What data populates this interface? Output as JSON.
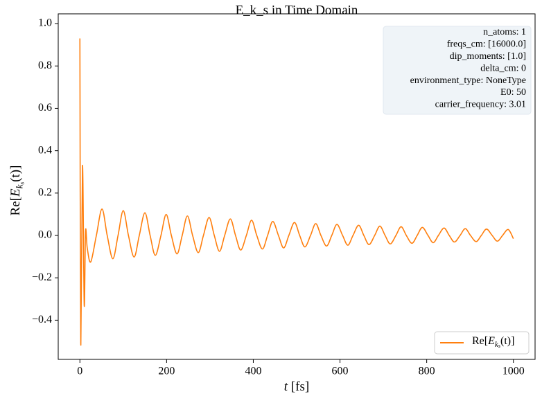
{
  "chart_data": {
    "type": "line",
    "title": "E_k_s in Time Domain",
    "xlabel": [
      "t",
      " [fs]"
    ],
    "ylabel": [
      "Re[",
      "E",
      "k",
      "s",
      "(t)]"
    ],
    "x": [
      0,
      2,
      6,
      10,
      13,
      17,
      25,
      38,
      51,
      63,
      76,
      88,
      100,
      112,
      125,
      137,
      150,
      162,
      174,
      187,
      199,
      211,
      224,
      236,
      248,
      260,
      273,
      285,
      298,
      310,
      322,
      334,
      347,
      359,
      371,
      384,
      396,
      408,
      421,
      433,
      445,
      458,
      470,
      482,
      495,
      507,
      519,
      532,
      544,
      556,
      569,
      581,
      593,
      606,
      618,
      630,
      643,
      655,
      667,
      680,
      692,
      704,
      716,
      729,
      741,
      753,
      766,
      778,
      790,
      803,
      815,
      827,
      840,
      852,
      864,
      877,
      889,
      901,
      914,
      926,
      938,
      951,
      963,
      975,
      988,
      1000
    ],
    "series": [
      {
        "name": [
          "Re[",
          "E",
          "k",
          "s",
          "(t)]"
        ],
        "color": "#ff7f0e",
        "values": [
          0.93,
          -0.51,
          0.33,
          -0.33,
          0.02,
          -0.06,
          -0.125,
          0,
          0.125,
          0,
          -0.11,
          0,
          0.117,
          0,
          -0.102,
          0,
          0.107,
          0,
          -0.094,
          0,
          0.099,
          0,
          -0.087,
          0,
          0.092,
          0,
          -0.081,
          0,
          0.085,
          0,
          -0.075,
          0,
          0.078,
          0,
          -0.069,
          0,
          0.072,
          0,
          -0.064,
          0,
          0.066,
          0,
          -0.059,
          0,
          0.061,
          0,
          -0.054,
          0,
          0.056,
          0,
          -0.05,
          0,
          0.052,
          0,
          -0.046,
          0,
          0.048,
          0,
          -0.043,
          0,
          0.044,
          0,
          -0.04,
          0,
          0.041,
          0,
          -0.037,
          0,
          0.038,
          0,
          -0.034,
          0,
          0.035,
          0,
          -0.031,
          0,
          0.032,
          0,
          -0.029,
          0,
          0.03,
          0,
          -0.027,
          0,
          0.028,
          -0.015
        ]
      }
    ],
    "xlim": [
      -50,
      1050
    ],
    "ylim": [
      -0.585,
      1.046
    ],
    "xticks": [
      0,
      200,
      400,
      600,
      800,
      1000
    ],
    "yticks": [
      {
        "value": -0.4,
        "label": "−0.4"
      },
      {
        "value": -0.2,
        "label": "−0.2"
      },
      {
        "value": 0,
        "label": "0.0"
      },
      {
        "value": 0.2,
        "label": "0.2"
      },
      {
        "value": 0.4,
        "label": "0.4"
      },
      {
        "value": 0.6,
        "label": "0.6"
      },
      {
        "value": 0.8,
        "label": "0.8"
      },
      {
        "value": 1.0,
        "label": "1.0"
      }
    ],
    "legend": "lower right",
    "annotation": [
      "n_atoms: 1",
      "freqs_cm: [16000.0]",
      "dip_moments: [1.0]",
      "delta_cm: 0",
      "environment_type: NoneType",
      "E0: 50",
      "carrier_frequency: 3.01"
    ]
  }
}
